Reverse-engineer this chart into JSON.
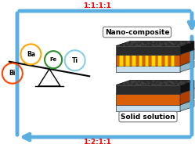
{
  "bg_color": "#ffffff",
  "top_label": "1:1:1:1",
  "bottom_label": "1:2:1:1",
  "solid_solution_label": "Solid solution",
  "nano_composite_label": "Nano-composite",
  "elements": [
    {
      "label": "Ba",
      "color": "#FFA500"
    },
    {
      "label": "Ti",
      "color": "#87CEEB"
    },
    {
      "label": "Fe",
      "color": "#2e8b2e"
    },
    {
      "label": "Bi",
      "color": "#FF4500"
    }
  ],
  "arrow_color": "#5aaee0",
  "dark_gray": "#2b2b2b",
  "dark_top": "#222222",
  "orange_color": "#d95f02",
  "light_blue": "#c8dff0",
  "light_blue2": "#b0cfe0",
  "gold_color": "#FFD700",
  "gold_dark": "#cc9900"
}
